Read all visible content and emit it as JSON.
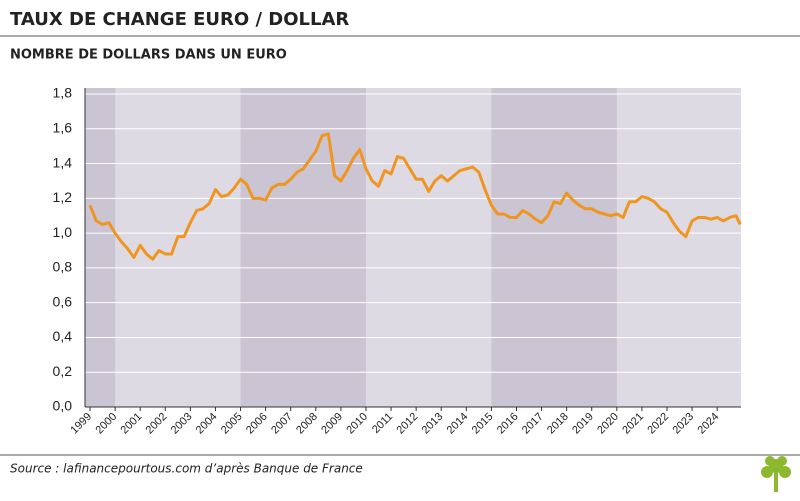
{
  "chart_data": {
    "type": "line",
    "title": "TAUX DE CHANGE EURO / DOLLAR",
    "subtitle": "NOMBRE DE DOLLARS DANS UN EURO",
    "source": "Source : lafinancepourtous.com d’après Banque de France",
    "x": [
      1999,
      1999.25,
      1999.5,
      1999.75,
      2000,
      2000.25,
      2000.5,
      2000.75,
      2001,
      2001.25,
      2001.5,
      2001.75,
      2002,
      2002.25,
      2002.5,
      2002.75,
      2003,
      2003.25,
      2003.5,
      2003.75,
      2004,
      2004.25,
      2004.5,
      2004.75,
      2005,
      2005.25,
      2005.5,
      2005.75,
      2006,
      2006.25,
      2006.5,
      2006.75,
      2007,
      2007.25,
      2007.5,
      2007.75,
      2008,
      2008.25,
      2008.5,
      2008.75,
      2009,
      2009.25,
      2009.5,
      2009.75,
      2010,
      2010.25,
      2010.5,
      2010.75,
      2011,
      2011.25,
      2011.5,
      2011.75,
      2012,
      2012.25,
      2012.5,
      2012.75,
      2013,
      2013.25,
      2013.5,
      2013.75,
      2014,
      2014.25,
      2014.5,
      2014.75,
      2015,
      2015.25,
      2015.5,
      2015.75,
      2016,
      2016.25,
      2016.5,
      2016.75,
      2017,
      2017.25,
      2017.5,
      2017.75,
      2018,
      2018.25,
      2018.5,
      2018.75,
      2019,
      2019.25,
      2019.5,
      2019.75,
      2020,
      2020.25,
      2020.5,
      2020.75,
      2021,
      2021.25,
      2021.5,
      2021.75,
      2022,
      2022.25,
      2022.5,
      2022.75,
      2023,
      2023.25,
      2023.5,
      2023.75,
      2024,
      2024.25,
      2024.5,
      2024.75,
      2024.92
    ],
    "series": [
      {
        "color": "#ef9520",
        "values": [
          1.16,
          1.07,
          1.05,
          1.06,
          1.0,
          0.95,
          0.91,
          0.86,
          0.93,
          0.88,
          0.85,
          0.9,
          0.88,
          0.88,
          0.98,
          0.98,
          1.06,
          1.13,
          1.14,
          1.17,
          1.25,
          1.21,
          1.22,
          1.26,
          1.31,
          1.28,
          1.2,
          1.2,
          1.19,
          1.26,
          1.28,
          1.28,
          1.31,
          1.35,
          1.37,
          1.42,
          1.47,
          1.56,
          1.57,
          1.33,
          1.3,
          1.36,
          1.43,
          1.48,
          1.37,
          1.3,
          1.27,
          1.36,
          1.34,
          1.44,
          1.43,
          1.37,
          1.31,
          1.31,
          1.24,
          1.3,
          1.33,
          1.3,
          1.33,
          1.36,
          1.37,
          1.38,
          1.35,
          1.25,
          1.16,
          1.11,
          1.11,
          1.09,
          1.09,
          1.13,
          1.11,
          1.08,
          1.06,
          1.1,
          1.18,
          1.17,
          1.23,
          1.19,
          1.16,
          1.14,
          1.14,
          1.12,
          1.11,
          1.1,
          1.11,
          1.09,
          1.18,
          1.18,
          1.21,
          1.2,
          1.18,
          1.14,
          1.12,
          1.06,
          1.01,
          0.98,
          1.07,
          1.09,
          1.09,
          1.08,
          1.09,
          1.07,
          1.09,
          1.1,
          1.05
        ]
      }
    ],
    "xlim": [
      1998.8,
      2024.95
    ],
    "xticks": [
      1999,
      2000,
      2001,
      2002,
      2003,
      2004,
      2005,
      2006,
      2007,
      2008,
      2009,
      2010,
      2011,
      2012,
      2013,
      2014,
      2015,
      2016,
      2017,
      2018,
      2019,
      2020,
      2021,
      2022,
      2023,
      2024
    ],
    "ylim": [
      0,
      1.8
    ],
    "yticks": [
      {
        "value": 0,
        "label": "0,0"
      },
      {
        "value": 0.2,
        "label": "0,2"
      },
      {
        "value": 0.4,
        "label": "0,4"
      },
      {
        "value": 0.6,
        "label": "0,6"
      },
      {
        "value": 0.8,
        "label": "0,8"
      },
      {
        "value": 1.0,
        "label": "1,0"
      },
      {
        "value": 1.2,
        "label": "1,2"
      },
      {
        "value": 1.4,
        "label": "1,4"
      },
      {
        "value": 1.6,
        "label": "1,6"
      },
      {
        "value": 1.8,
        "label": "1,8"
      }
    ],
    "shaded_spans": [
      [
        1998.8,
        2000
      ],
      [
        2005,
        2010
      ],
      [
        2015,
        2020
      ]
    ],
    "grid": true
  }
}
